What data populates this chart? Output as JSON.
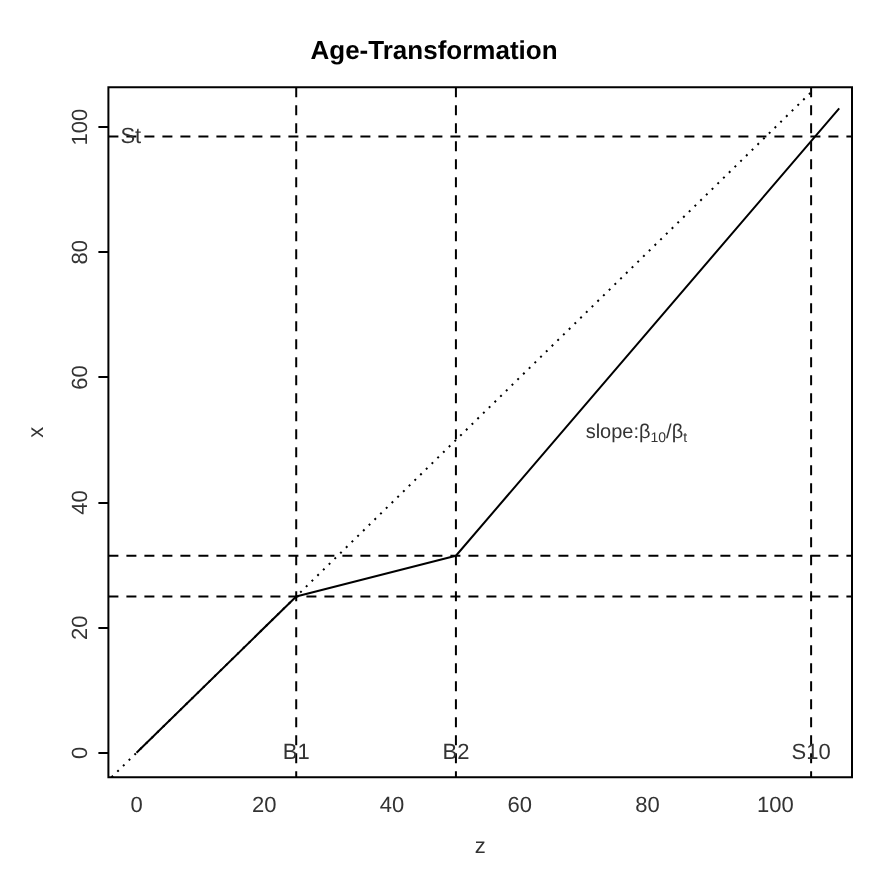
{
  "chart_data": {
    "type": "line",
    "title": "Age-Transformation",
    "xlabel": "z",
    "ylabel": "x",
    "xlim": [
      -4.4,
      112
    ],
    "ylim": [
      -3.9,
      106.4
    ],
    "xticks": [
      0,
      20,
      40,
      60,
      80,
      100
    ],
    "yticks": [
      0,
      20,
      40,
      60,
      80,
      100
    ],
    "grid": false,
    "legend": false,
    "marker": "none",
    "series": [
      {
        "color": "#000000",
        "line_style": "solid",
        "x": [
          0,
          25,
          50,
          110
        ],
        "values": [
          0,
          25,
          31.5,
          103
        ]
      },
      {
        "color": "#000000",
        "line_style": "dotted",
        "x": [
          -3.9,
          106
        ],
        "values": [
          -3.9,
          106
        ]
      }
    ],
    "ref_lines": [
      {
        "axis": "x",
        "value": 25,
        "label": "B1",
        "color": "#000000",
        "line_style": "dashed"
      },
      {
        "axis": "x",
        "value": 50,
        "label": "B2",
        "color": "#000000",
        "line_style": "dashed"
      },
      {
        "axis": "x",
        "value": 105.6,
        "label": "S10",
        "color": "#000000",
        "line_style": "dashed"
      },
      {
        "axis": "y",
        "value": 98.5,
        "label": "St",
        "color": "#000000",
        "line_style": "dashed"
      },
      {
        "axis": "y",
        "value": 25,
        "color": "#000000",
        "line_style": "dashed"
      },
      {
        "axis": "y",
        "value": 31.5,
        "color": "#000000",
        "line_style": "dashed"
      }
    ],
    "annotations": [
      "slope:β$_{10}$/β$_{t}$"
    ]
  }
}
